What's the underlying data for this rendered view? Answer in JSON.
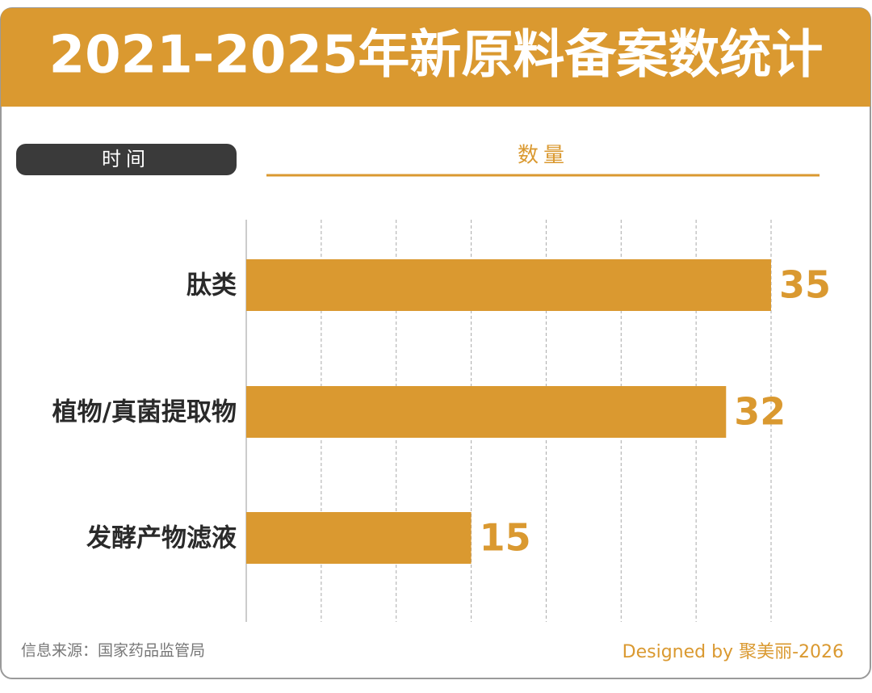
{
  "chart_data": {
    "type": "bar",
    "orientation": "horizontal",
    "title": "2021-2025年新原料备案数统计",
    "y_label": "时间",
    "x_label": "数量",
    "categories": [
      "肽类",
      "植物/真菌提取物",
      "发酵产物滤液"
    ],
    "values": [
      35,
      32,
      15
    ],
    "color": "#DA9930",
    "xlim": [
      0,
      35
    ],
    "xticks": [
      0,
      5,
      10,
      15,
      20,
      25,
      30,
      35
    ],
    "grid": true,
    "source": "信息来源：国家药品监管局",
    "credit": "Designed by 聚美丽-2026"
  }
}
